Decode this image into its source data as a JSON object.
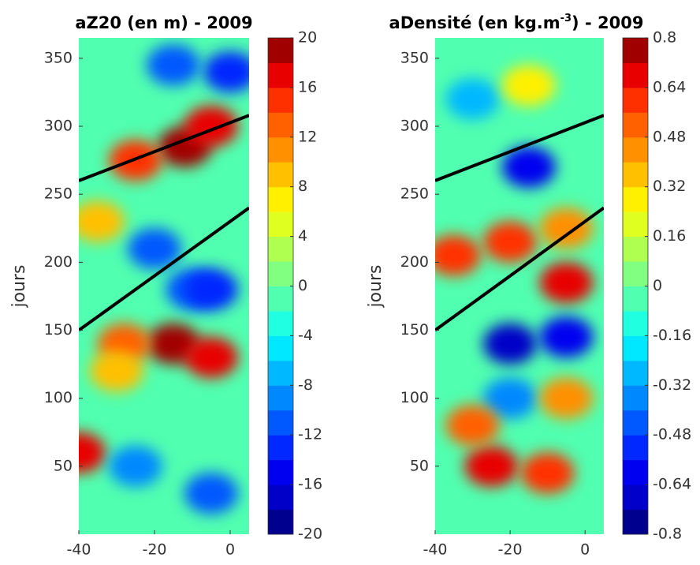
{
  "chart_data": [
    {
      "type": "heatmap",
      "title": [
        "aZ20 (en m) - 2009"
      ],
      "ylabel": "jours",
      "xlim": [
        -40,
        5
      ],
      "xticks": [
        -40,
        -20,
        0
      ],
      "ylim": [
        0,
        365
      ],
      "yticks": [
        50,
        100,
        150,
        200,
        250,
        300,
        350
      ],
      "colorbar": {
        "clim": [
          -20,
          20
        ],
        "ticks": [
          20,
          16,
          12,
          8,
          4,
          0,
          -4,
          -8,
          -12,
          -16,
          -20
        ],
        "colors": [
          "#00008f",
          "#0000c8",
          "#0000f0",
          "#0028ff",
          "#0058ff",
          "#0088ff",
          "#00b8ff",
          "#00e8ff",
          "#20ffdf",
          "#50ffaf",
          "#80ff80",
          "#afff50",
          "#dfff20",
          "#fff000",
          "#ffc000",
          "#ff9000",
          "#ff6000",
          "#ff3000",
          "#e80000",
          "#a00000"
        ]
      },
      "cells": {
        "x": [
          -12,
          -25,
          -5,
          -15,
          -5,
          -28,
          -20,
          -10,
          0,
          -15,
          -40,
          -25,
          -5,
          -30,
          -35,
          -5
        ],
        "y": [
          285,
          275,
          300,
          140,
          130,
          140,
          210,
          180,
          340,
          345,
          60,
          50,
          30,
          120,
          230,
          180
        ],
        "values": [
          18,
          14,
          16,
          18,
          16,
          12,
          -12,
          -12,
          -14,
          -12,
          16,
          -10,
          -12,
          8,
          8,
          -14
        ]
      },
      "line_color": "#000000",
      "lines": [
        {
          "x": [
            -40,
            5
          ],
          "y": [
            260,
            308
          ]
        },
        {
          "x": [
            -40,
            5
          ],
          "y": [
            150,
            240
          ]
        }
      ]
    },
    {
      "type": "heatmap",
      "title": [
        "aDensité (en kg.m",
        "-3",
        ") - 2009"
      ],
      "ylabel": "jours",
      "xlim": [
        -40,
        5
      ],
      "xticks": [
        -40,
        -20,
        0
      ],
      "ylim": [
        0,
        365
      ],
      "yticks": [
        50,
        100,
        150,
        200,
        250,
        300,
        350
      ],
      "colorbar": {
        "clim": [
          -0.8,
          0.8
        ],
        "ticks": [
          0.8,
          0.64,
          0.48,
          0.32,
          0.16,
          0,
          -0.16,
          -0.32,
          -0.48,
          -0.64,
          -0.8
        ],
        "colors": [
          "#00008f",
          "#0000c8",
          "#0000f0",
          "#0028ff",
          "#0058ff",
          "#0088ff",
          "#00b8ff",
          "#00e8ff",
          "#20ffdf",
          "#50ffaf",
          "#80ff80",
          "#afff50",
          "#dfff20",
          "#fff000",
          "#ffc000",
          "#ff9000",
          "#ff6000",
          "#ff3000",
          "#e80000",
          "#a00000"
        ]
      },
      "cells": {
        "x": [
          -20,
          -5,
          -35,
          -20,
          -5,
          -25,
          -10,
          -15,
          -5,
          -30,
          -20,
          -5,
          -30,
          -15
        ],
        "y": [
          215,
          185,
          205,
          140,
          145,
          50,
          45,
          270,
          225,
          320,
          100,
          100,
          80,
          330
        ],
        "values": [
          0.6,
          0.7,
          0.6,
          -0.7,
          -0.6,
          0.7,
          0.6,
          -0.6,
          0.4,
          -0.3,
          -0.4,
          0.4,
          0.5,
          0.3
        ]
      },
      "line_color": "#000000",
      "lines": [
        {
          "x": [
            -40,
            5
          ],
          "y": [
            260,
            308
          ]
        },
        {
          "x": [
            -40,
            5
          ],
          "y": [
            150,
            240
          ]
        }
      ]
    }
  ]
}
